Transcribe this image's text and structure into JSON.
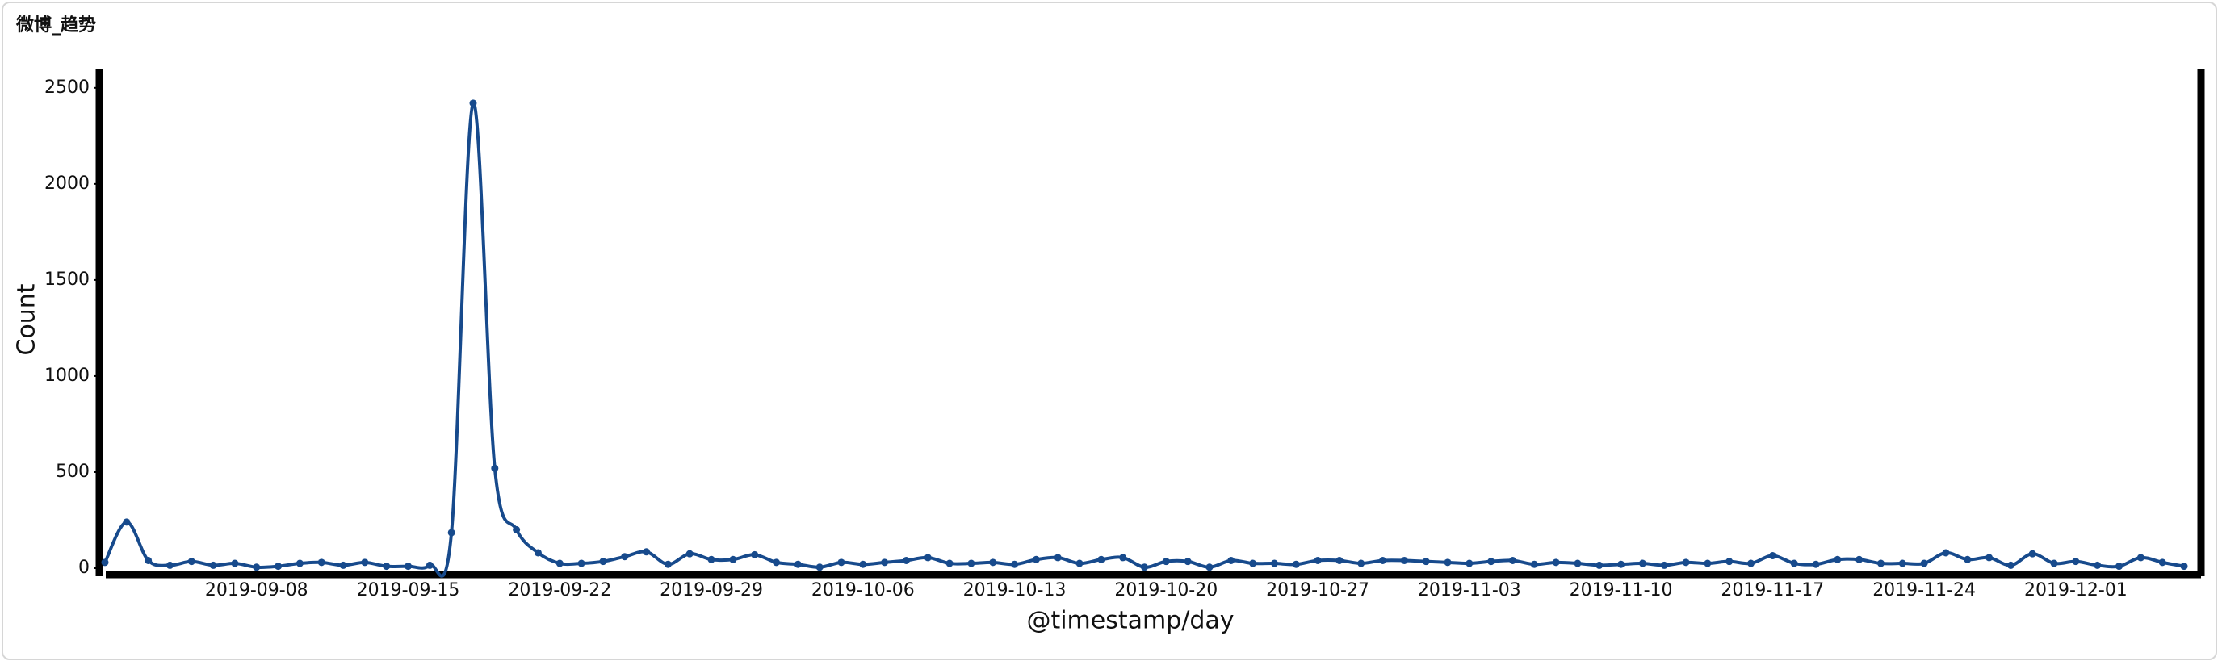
{
  "chart_data": {
    "type": "line",
    "title": "微博_趋势",
    "x_label": "@timestamp/day",
    "y_label": "Count",
    "x": [
      "2019-09-01",
      "2019-09-02",
      "2019-09-03",
      "2019-09-04",
      "2019-09-05",
      "2019-09-06",
      "2019-09-07",
      "2019-09-08",
      "2019-09-09",
      "2019-09-10",
      "2019-09-11",
      "2019-09-12",
      "2019-09-13",
      "2019-09-14",
      "2019-09-15",
      "2019-09-16",
      "2019-09-17",
      "2019-09-18",
      "2019-09-19",
      "2019-09-20",
      "2019-09-21",
      "2019-09-22",
      "2019-09-23",
      "2019-09-24",
      "2019-09-25",
      "2019-09-26",
      "2019-09-27",
      "2019-09-28",
      "2019-09-29",
      "2019-09-30",
      "2019-10-01",
      "2019-10-02",
      "2019-10-03",
      "2019-10-04",
      "2019-10-05",
      "2019-10-06",
      "2019-10-07",
      "2019-10-08",
      "2019-10-09",
      "2019-10-10",
      "2019-10-11",
      "2019-10-12",
      "2019-10-13",
      "2019-10-14",
      "2019-10-15",
      "2019-10-16",
      "2019-10-17",
      "2019-10-18",
      "2019-10-19",
      "2019-10-20",
      "2019-10-21",
      "2019-10-22",
      "2019-10-23",
      "2019-10-24",
      "2019-10-25",
      "2019-10-26",
      "2019-10-27",
      "2019-10-28",
      "2019-10-29",
      "2019-10-30",
      "2019-10-31",
      "2019-11-01",
      "2019-11-02",
      "2019-11-03",
      "2019-11-04",
      "2019-11-05",
      "2019-11-06",
      "2019-11-07",
      "2019-11-08",
      "2019-11-09",
      "2019-11-10",
      "2019-11-11",
      "2019-11-12",
      "2019-11-13",
      "2019-11-14",
      "2019-11-15",
      "2019-11-16",
      "2019-11-17",
      "2019-11-18",
      "2019-11-19",
      "2019-11-20",
      "2019-11-21",
      "2019-11-22",
      "2019-11-23",
      "2019-11-24",
      "2019-11-25",
      "2019-11-26",
      "2019-11-27",
      "2019-11-28",
      "2019-11-29",
      "2019-11-30",
      "2019-12-01",
      "2019-12-02",
      "2019-12-03",
      "2019-12-04",
      "2019-12-05",
      "2019-12-06"
    ],
    "series": [
      {
        "name": "Count",
        "color": "#174a8c",
        "values": [
          30,
          240,
          40,
          15,
          35,
          15,
          25,
          5,
          10,
          25,
          30,
          15,
          30,
          10,
          10,
          15,
          185,
          2420,
          520,
          200,
          80,
          25,
          25,
          35,
          60,
          85,
          20,
          75,
          45,
          45,
          70,
          30,
          20,
          5,
          30,
          20,
          30,
          40,
          55,
          25,
          25,
          30,
          20,
          45,
          55,
          25,
          45,
          55,
          5,
          35,
          35,
          5,
          40,
          25,
          25,
          20,
          40,
          40,
          25,
          40,
          40,
          35,
          30,
          25,
          35,
          40,
          20,
          30,
          25,
          15,
          20,
          25,
          15,
          30,
          25,
          35,
          25,
          65,
          25,
          20,
          45,
          45,
          25,
          25,
          25,
          80,
          45,
          55,
          15,
          75,
          25,
          35,
          15,
          10,
          55,
          30,
          10
        ]
      }
    ],
    "xlim": [
      "2019-09-01",
      "2019-12-06"
    ],
    "xticks": [
      "2019-09-08",
      "2019-09-15",
      "2019-09-22",
      "2019-09-29",
      "2019-10-06",
      "2019-10-13",
      "2019-10-20",
      "2019-10-27",
      "2019-11-03",
      "2019-11-10",
      "2019-11-17",
      "2019-11-24",
      "2019-12-01"
    ],
    "ylim": [
      0,
      2600
    ],
    "yticks": [
      0,
      500,
      1000,
      1500,
      2000,
      2500
    ]
  }
}
